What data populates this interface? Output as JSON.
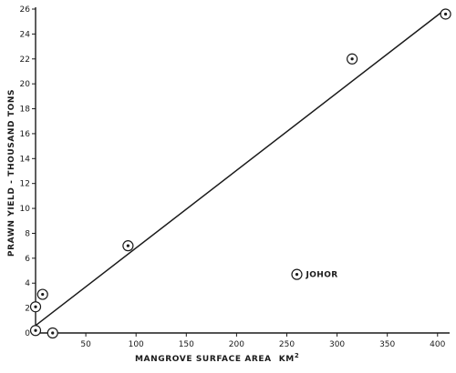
{
  "chart_data": {
    "type": "scatter",
    "title": "",
    "xlabel": "MANGROVE SURFACE AREA",
    "xlabel_unit": "KM",
    "xlabel_unit_sup": "2",
    "ylabel": "PRAWN YIELD - THOUSAND TONS",
    "xlim": [
      0,
      412
    ],
    "ylim": [
      0,
      26
    ],
    "x_ticks": [
      50,
      100,
      150,
      200,
      250,
      300,
      350,
      400
    ],
    "y_ticks": [
      0,
      2,
      4,
      6,
      8,
      10,
      12,
      14,
      16,
      18,
      20,
      22,
      24,
      26
    ],
    "grid": false,
    "legend": "none",
    "series": [
      {
        "points": [
          {
            "x": 0,
            "y": 0.2
          },
          {
            "x": 0,
            "y": 2.1
          },
          {
            "x": 7,
            "y": 3.1
          },
          {
            "x": 17,
            "y": 0.0
          },
          {
            "x": 92,
            "y": 7.0
          },
          {
            "x": 260,
            "y": 4.7
          },
          {
            "x": 315,
            "y": 22.0
          },
          {
            "x": 408,
            "y": 25.6
          }
        ]
      }
    ],
    "regression_line": {
      "x": [
        0,
        408
      ],
      "y": [
        0.6,
        26.0
      ]
    },
    "annotations": [
      {
        "text": "JOHOR",
        "x": 260,
        "y": 4.7
      }
    ]
  }
}
